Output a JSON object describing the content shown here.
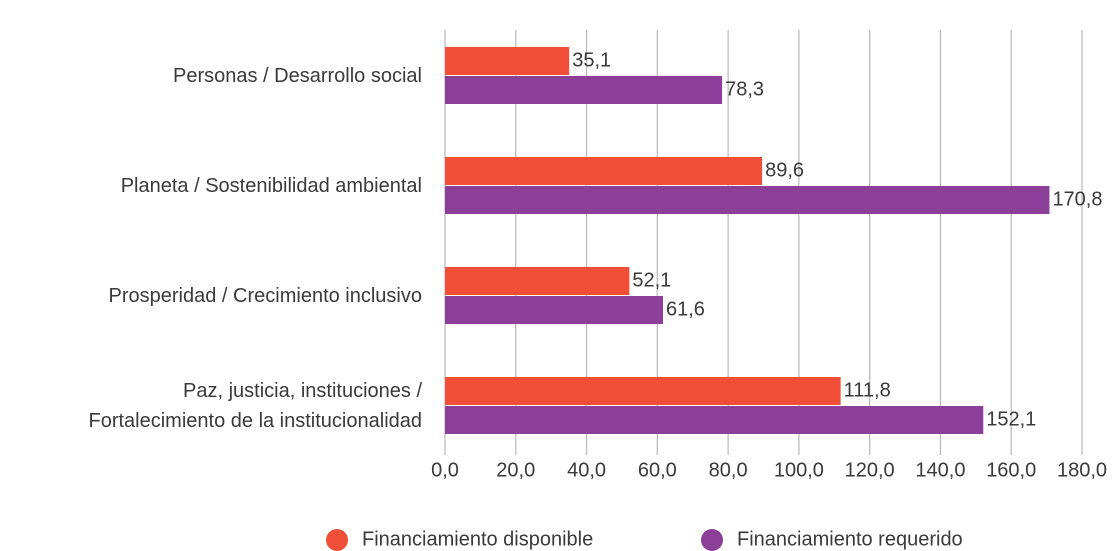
{
  "chart_data": {
    "type": "bar",
    "orientation": "horizontal",
    "categories": [
      "Personas / Desarrollo social",
      "Planeta / Sostenibilidad ambiental",
      "Prosperidad / Crecimiento inclusivo",
      "Paz, justicia, instituciones /\nFortalecimiento de la institucionalidad"
    ],
    "series": [
      {
        "name": "Financiamiento disponible",
        "color": "#f04e37",
        "values": [
          35.1,
          89.6,
          52.1,
          111.8
        ],
        "value_labels": [
          "35,1",
          "89,6",
          "52,1",
          "111,8"
        ]
      },
      {
        "name": "Financiamiento requerido",
        "color": "#8b3f98",
        "values": [
          78.3,
          170.8,
          61.6,
          152.1
        ],
        "value_labels": [
          "78,3",
          "170,8",
          "61,6",
          "152,1"
        ]
      }
    ],
    "xlim": [
      0,
      180
    ],
    "xticks": [
      {
        "value": 0,
        "label": "0,0"
      },
      {
        "value": 20,
        "label": "20,0"
      },
      {
        "value": 40,
        "label": "40,0"
      },
      {
        "value": 60,
        "label": "60,0"
      },
      {
        "value": 80,
        "label": "80,0"
      },
      {
        "value": 100,
        "label": "100,0"
      },
      {
        "value": 120,
        "label": "120,0"
      },
      {
        "value": 140,
        "label": "140,0"
      },
      {
        "value": 160,
        "label": "160,0"
      },
      {
        "value": 180,
        "label": "180,0"
      }
    ],
    "grid": true,
    "legend": "bottom"
  }
}
